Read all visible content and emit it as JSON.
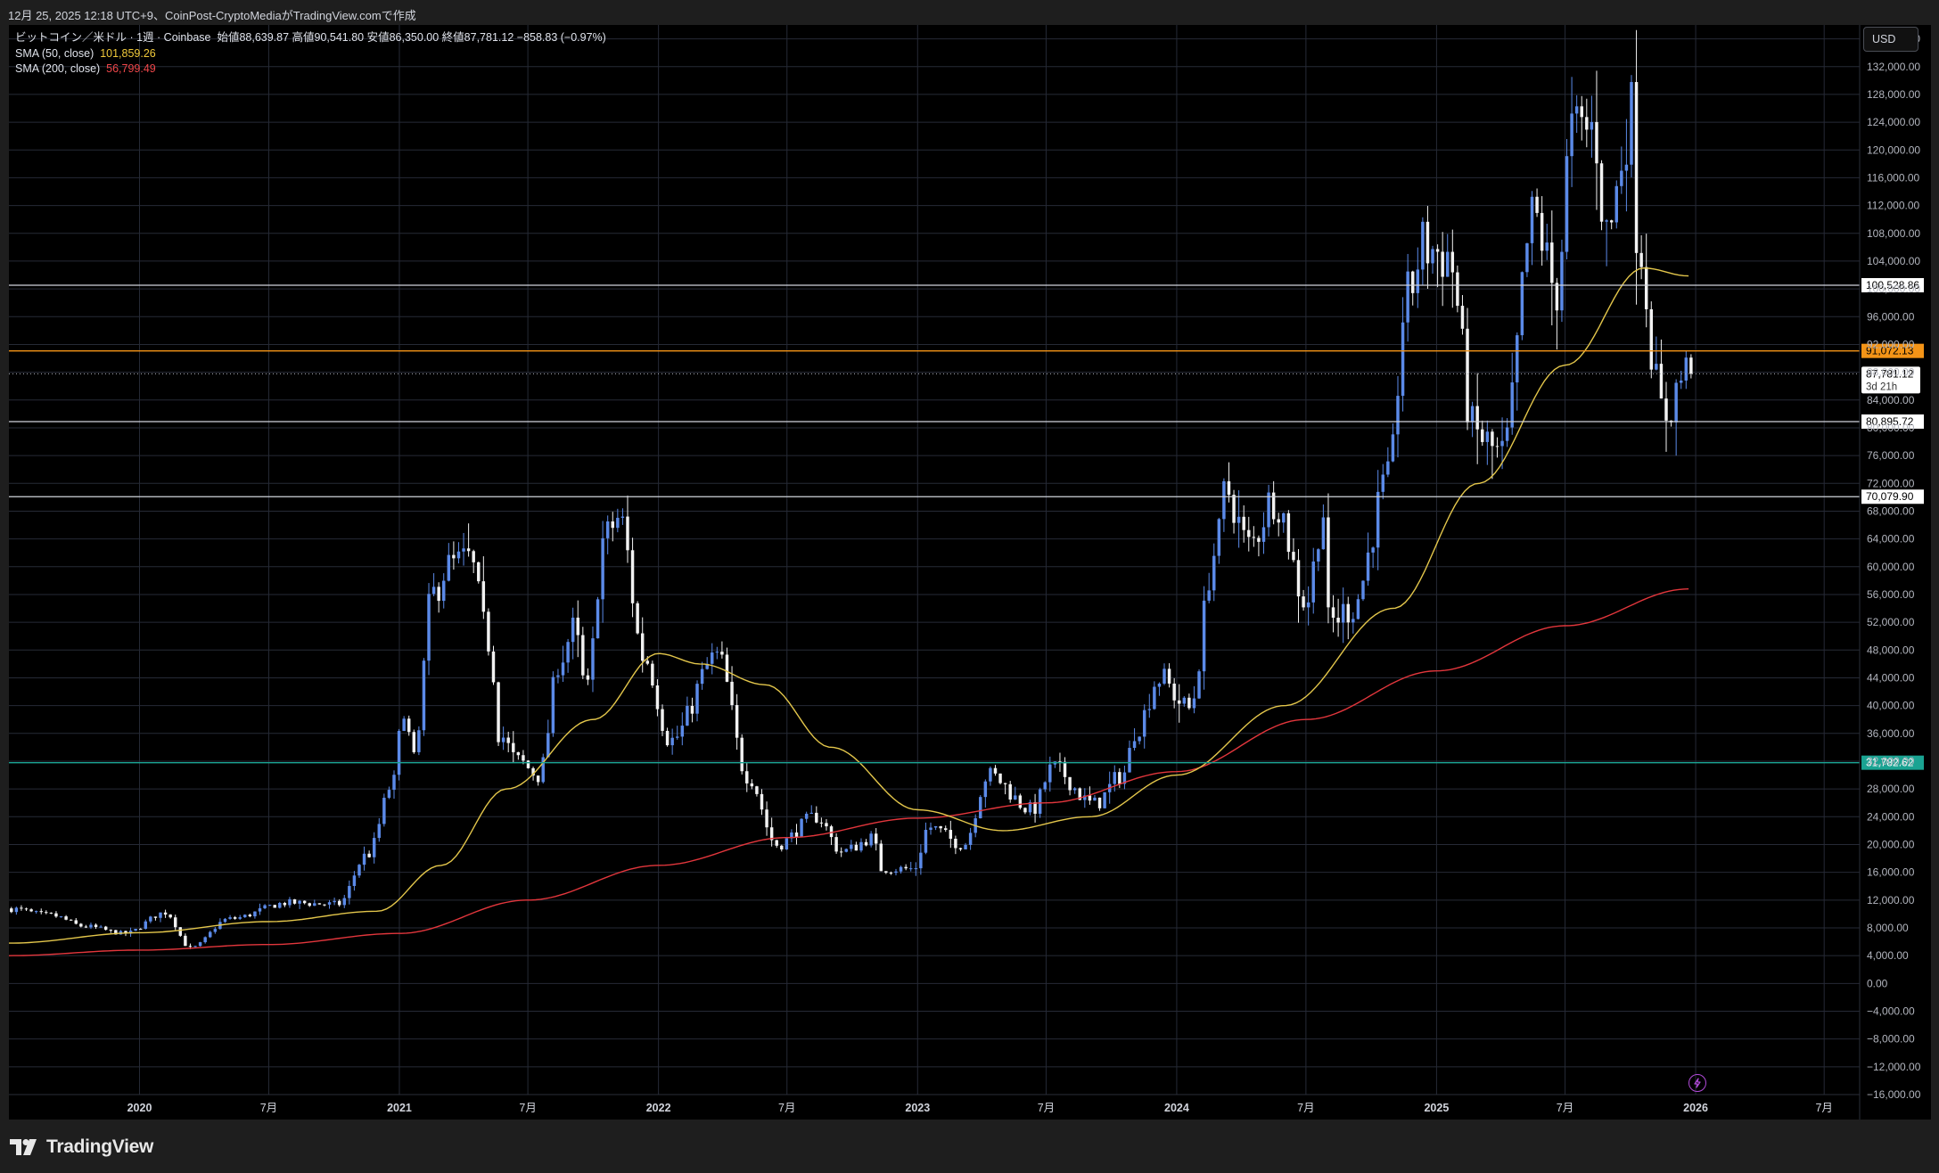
{
  "header": {
    "caption": "12月 25, 2025 12:18 UTC+9、CoinPost-CryptoMediaがTradingView.comで作成"
  },
  "legend": {
    "symbol": "ビットコイン／米ドル · 1週 · Coinbase",
    "ohlc_text": "始値88,639.87  高値90,541.80  安値86,350.00  終値87,781.12  −858.83 (−0.97%)",
    "sma50_label": "SMA (50, close)",
    "sma50_value": "101,859.26",
    "sma200_label": "SMA (200, close)",
    "sma200_value": "56,799.49"
  },
  "currency_button": {
    "label": "USD"
  },
  "footer": {
    "logo_text": "TradingView"
  },
  "colors": {
    "background": "#000000",
    "grid": "#262a36",
    "candle_up": "#5b8ae8",
    "candle_down": "#f2f2f2",
    "sma50": "#e3c64b",
    "sma200": "#e2363c",
    "level_orange": "#f49417",
    "level_green": "#1aa392"
  },
  "chart_data": {
    "type": "candlestick",
    "timeframe": "1W",
    "y_axis": {
      "range": [
        -16000,
        138000
      ],
      "tick_step": 4000,
      "first_tick": -16000,
      "last_tick": 136000,
      "format": "thousands-2dp"
    },
    "x_axis": {
      "range": [
        "2019-07-01",
        "2026-08-20"
      ],
      "ticks": [
        {
          "date": "2020-01-01",
          "label": "2020",
          "major": true
        },
        {
          "date": "2020-07-01",
          "label": "7月",
          "major": false
        },
        {
          "date": "2021-01-01",
          "label": "2021",
          "major": true
        },
        {
          "date": "2021-07-01",
          "label": "7月",
          "major": false
        },
        {
          "date": "2022-01-01",
          "label": "2022",
          "major": true
        },
        {
          "date": "2022-07-01",
          "label": "7月",
          "major": false
        },
        {
          "date": "2023-01-01",
          "label": "2023",
          "major": true
        },
        {
          "date": "2023-07-01",
          "label": "7月",
          "major": false
        },
        {
          "date": "2024-01-01",
          "label": "2024",
          "major": true
        },
        {
          "date": "2024-07-01",
          "label": "7月",
          "major": false
        },
        {
          "date": "2025-01-01",
          "label": "2025",
          "major": true
        },
        {
          "date": "2025-07-01",
          "label": "7月",
          "major": false
        },
        {
          "date": "2026-01-01",
          "label": "2026",
          "major": true
        },
        {
          "date": "2026-07-01",
          "label": "7月",
          "major": false
        }
      ]
    },
    "price_anchors": [
      [
        "2019-07-01",
        10800
      ],
      [
        "2019-09-01",
        9800
      ],
      [
        "2019-10-20",
        8200
      ],
      [
        "2019-12-15",
        7200
      ],
      [
        "2020-02-10",
        10200
      ],
      [
        "2020-03-16",
        5100
      ],
      [
        "2020-05-10",
        9300
      ],
      [
        "2020-08-01",
        11600
      ],
      [
        "2020-10-10",
        11400
      ],
      [
        "2020-11-20",
        18500
      ],
      [
        "2020-12-28",
        29000
      ],
      [
        "2021-01-10",
        40000
      ],
      [
        "2021-01-25",
        32000
      ],
      [
        "2021-02-20",
        56000
      ],
      [
        "2021-03-14",
        60000
      ],
      [
        "2021-04-12",
        61000
      ],
      [
        "2021-05-12",
        49000
      ],
      [
        "2021-05-25",
        36000
      ],
      [
        "2021-06-20",
        32000
      ],
      [
        "2021-07-20",
        30000
      ],
      [
        "2021-08-20",
        47000
      ],
      [
        "2021-09-07",
        51000
      ],
      [
        "2021-09-25",
        42000
      ],
      [
        "2021-10-20",
        64000
      ],
      [
        "2021-11-10",
        67000
      ],
      [
        "2021-12-15",
        47000
      ],
      [
        "2022-01-22",
        35000
      ],
      [
        "2022-03-28",
        47000
      ],
      [
        "2022-05-10",
        30000
      ],
      [
        "2022-06-20",
        20000
      ],
      [
        "2022-08-15",
        24000
      ],
      [
        "2022-09-20",
        19000
      ],
      [
        "2022-11-05",
        21000
      ],
      [
        "2022-11-10",
        16500
      ],
      [
        "2022-12-30",
        16500
      ],
      [
        "2023-01-20",
        22500
      ],
      [
        "2023-03-10",
        20000
      ],
      [
        "2023-04-14",
        30000
      ],
      [
        "2023-06-15",
        25000
      ],
      [
        "2023-07-14",
        31000
      ],
      [
        "2023-09-10",
        25800
      ],
      [
        "2023-10-20",
        30000
      ],
      [
        "2023-11-10",
        37000
      ],
      [
        "2023-12-10",
        44000
      ],
      [
        "2024-01-22",
        39500
      ],
      [
        "2024-02-28",
        62000
      ],
      [
        "2024-03-14",
        71000
      ],
      [
        "2024-04-15",
        63000
      ],
      [
        "2024-05-21",
        70000
      ],
      [
        "2024-07-05",
        55000
      ],
      [
        "2024-07-29",
        68000
      ],
      [
        "2024-08-05",
        52000
      ],
      [
        "2024-09-06",
        54000
      ],
      [
        "2024-10-29",
        72000
      ],
      [
        "2024-11-22",
        98000
      ],
      [
        "2024-12-17",
        106000
      ],
      [
        "2025-01-20",
        105000
      ],
      [
        "2025-02-28",
        79000
      ],
      [
        "2025-04-07",
        76000
      ],
      [
        "2025-05-22",
        110000
      ],
      [
        "2025-06-22",
        100000
      ],
      [
        "2025-07-14",
        122000
      ],
      [
        "2025-08-14",
        123000
      ],
      [
        "2025-09-01",
        108000
      ],
      [
        "2025-10-06",
        125000
      ],
      [
        "2025-10-10",
        110000
      ],
      [
        "2025-11-20",
        82000
      ],
      [
        "2025-12-22",
        87781
      ]
    ],
    "sma50_anchors": [
      [
        "2019-07-01",
        5800
      ],
      [
        "2020-01-01",
        7300
      ],
      [
        "2020-07-01",
        8900
      ],
      [
        "2020-12-01",
        10400
      ],
      [
        "2021-03-01",
        17000
      ],
      [
        "2021-06-01",
        28000
      ],
      [
        "2021-10-01",
        38000
      ],
      [
        "2022-01-01",
        47500
      ],
      [
        "2022-03-01",
        46000
      ],
      [
        "2022-06-01",
        43000
      ],
      [
        "2022-09-01",
        34000
      ],
      [
        "2023-01-01",
        25000
      ],
      [
        "2023-05-01",
        22000
      ],
      [
        "2023-09-01",
        24000
      ],
      [
        "2024-01-01",
        30000
      ],
      [
        "2024-06-01",
        40000
      ],
      [
        "2024-11-01",
        54000
      ],
      [
        "2025-03-01",
        72000
      ],
      [
        "2025-07-01",
        89000
      ],
      [
        "2025-10-20",
        103000
      ],
      [
        "2025-12-22",
        101859.26
      ]
    ],
    "sma200_anchors": [
      [
        "2019-07-01",
        4000
      ],
      [
        "2020-01-01",
        4800
      ],
      [
        "2020-07-01",
        5600
      ],
      [
        "2021-01-01",
        7200
      ],
      [
        "2021-07-01",
        12000
      ],
      [
        "2022-01-01",
        17000
      ],
      [
        "2022-07-01",
        21000
      ],
      [
        "2023-01-01",
        23800
      ],
      [
        "2023-07-01",
        26000
      ],
      [
        "2024-01-01",
        30500
      ],
      [
        "2024-07-01",
        38000
      ],
      [
        "2025-01-01",
        45000
      ],
      [
        "2025-07-01",
        51500
      ],
      [
        "2025-12-22",
        56799.49
      ]
    ],
    "horizontal_levels": [
      {
        "value": 100528.86,
        "label": "100,528.86",
        "color": "#d1d4dc",
        "label_bg": "#ffffff",
        "label_color": "#000000"
      },
      {
        "value": 91072.13,
        "label": "91,072.13",
        "color": "#f49417",
        "label_bg": "#f49417",
        "label_color": "#000000"
      },
      {
        "value": 80895.72,
        "label": "80,895.72",
        "color": "#d1d4dc",
        "label_bg": "#ffffff",
        "label_color": "#000000"
      },
      {
        "value": 70079.9,
        "label": "70,079.90",
        "color": "#d1d4dc",
        "label_bg": "#ffffff",
        "label_color": "#000000"
      },
      {
        "value": 31782.62,
        "label": "31,782.62",
        "color": "#1aa392",
        "label_bg": "#1aa392",
        "label_color": "#ffffff"
      }
    ],
    "last_price": {
      "value": 87781.12,
      "label": "87,781.12",
      "countdown": "3d 21h"
    }
  }
}
